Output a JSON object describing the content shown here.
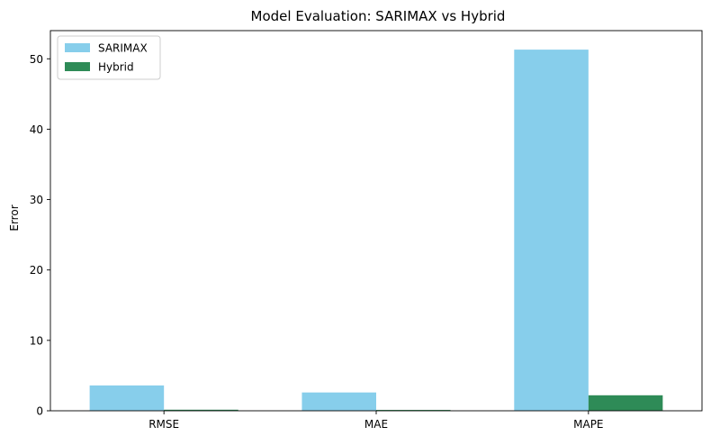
{
  "chart_data": {
    "type": "bar",
    "title": "Model Evaluation: SARIMAX vs Hybrid",
    "xlabel": "",
    "ylabel": "Error",
    "categories": [
      "RMSE",
      "MAE",
      "MAPE"
    ],
    "series": [
      {
        "name": "SARIMAX",
        "color": "#87ceeb",
        "values": [
          3.6,
          2.6,
          51.3
        ]
      },
      {
        "name": "Hybrid",
        "color": "#2e8b57",
        "values": [
          0.15,
          0.12,
          2.2
        ]
      }
    ],
    "ylim": [
      0,
      54
    ],
    "yticks": [
      0,
      10,
      20,
      30,
      40,
      50
    ],
    "legend": "top-left",
    "grid": false
  }
}
